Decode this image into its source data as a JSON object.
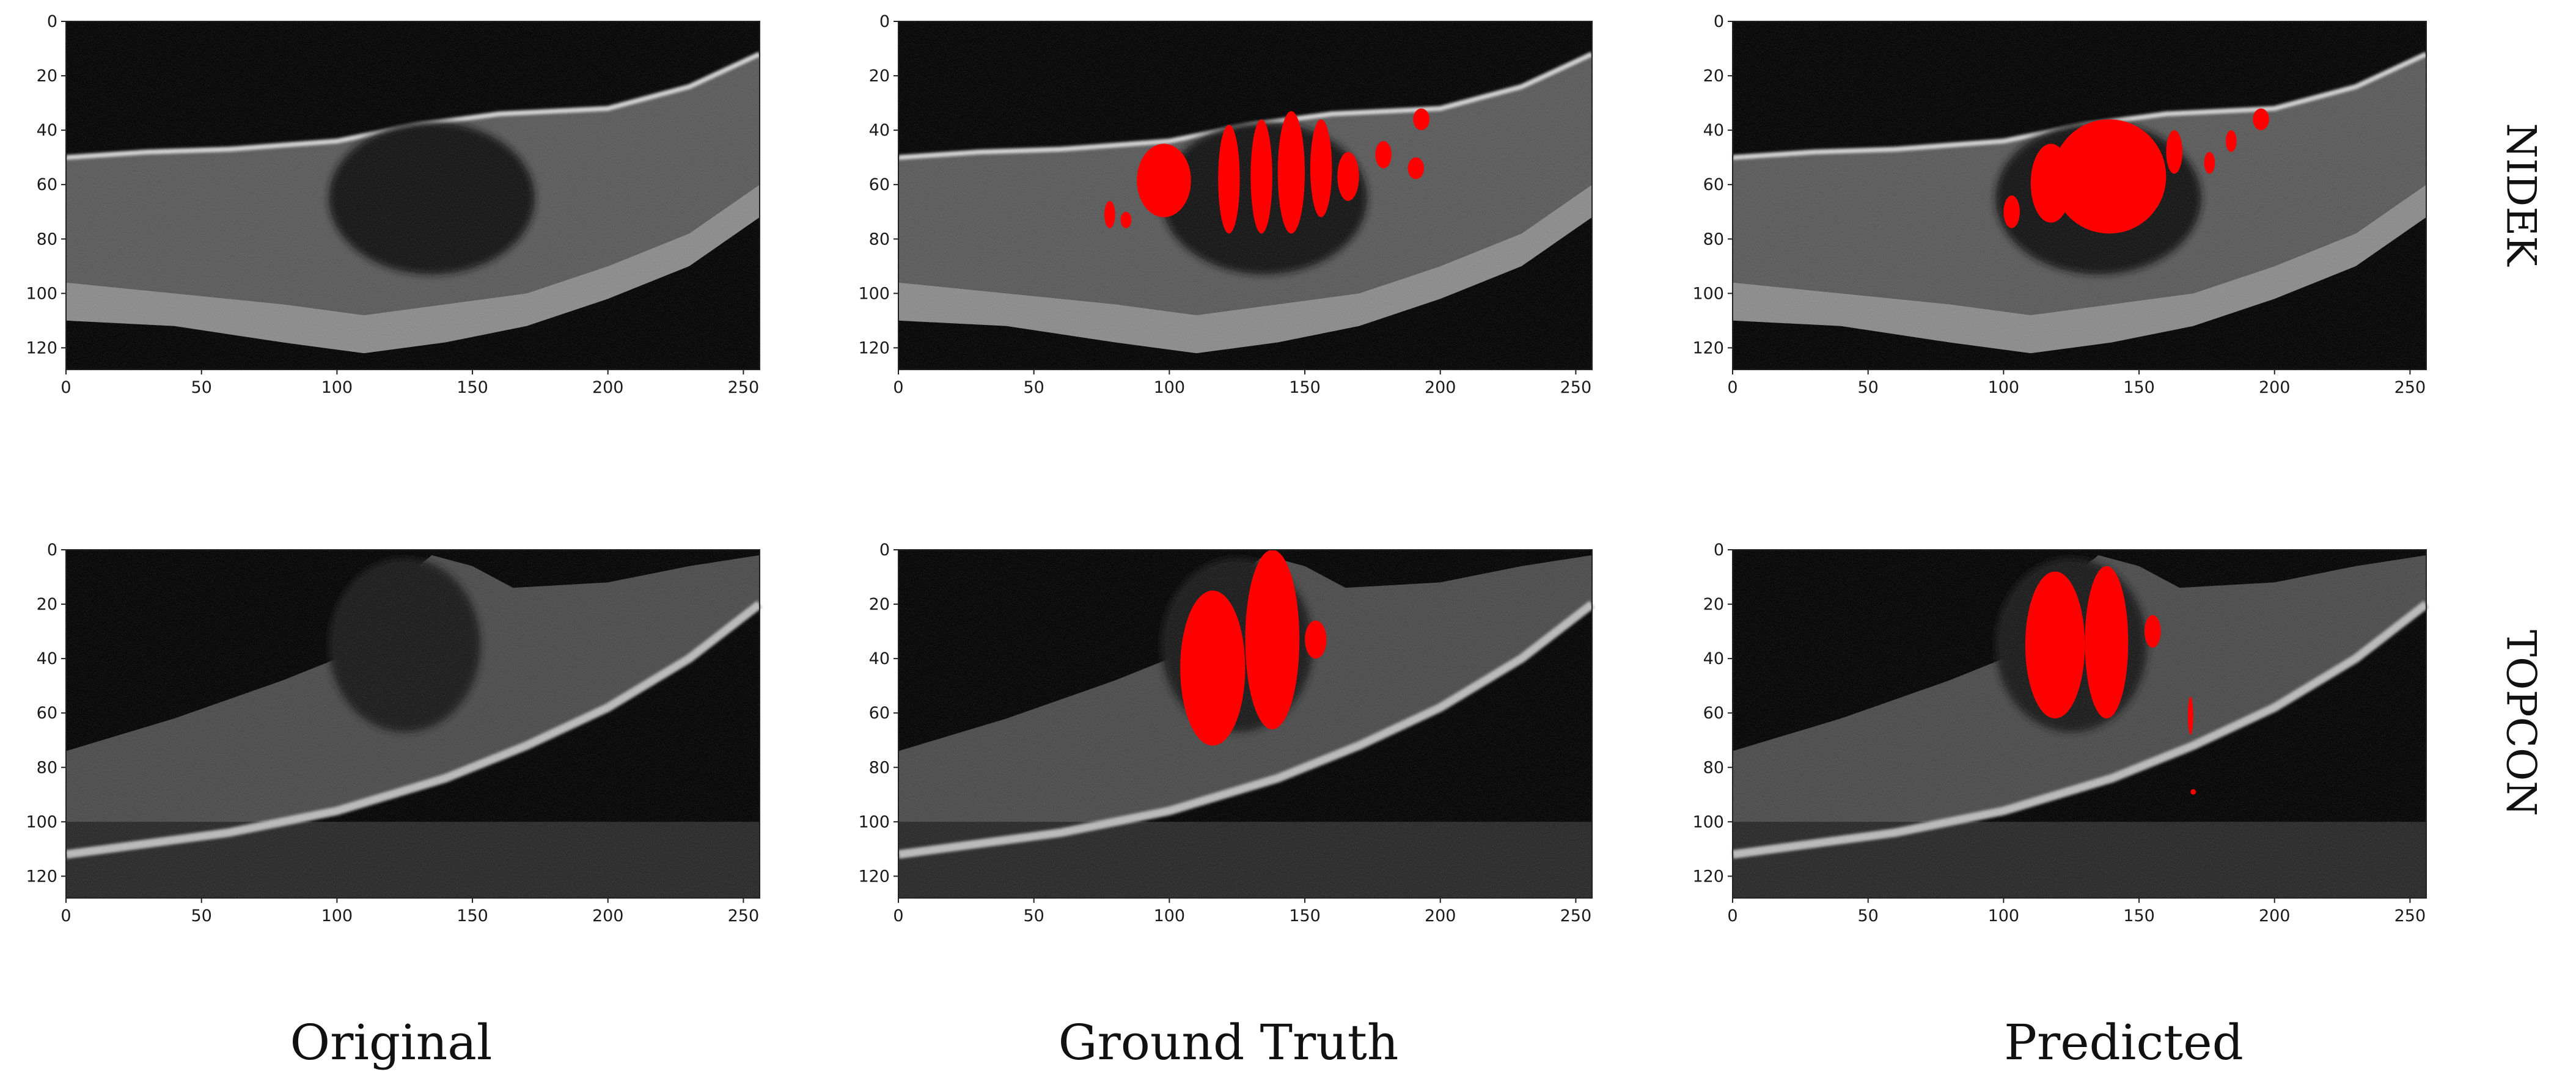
{
  "figure": {
    "x_ticks": [
      "0",
      "50",
      "100",
      "150",
      "200",
      "250"
    ],
    "y_ticks": [
      "0",
      "20",
      "40",
      "60",
      "80",
      "100",
      "120"
    ],
    "rows": [
      {
        "label": "NIDEK"
      },
      {
        "label": "TOPCON"
      }
    ],
    "columns": [
      {
        "label": "Original"
      },
      {
        "label": "Ground Truth"
      },
      {
        "label": "Predicted"
      }
    ],
    "segmentation_color": "#ff0000"
  }
}
